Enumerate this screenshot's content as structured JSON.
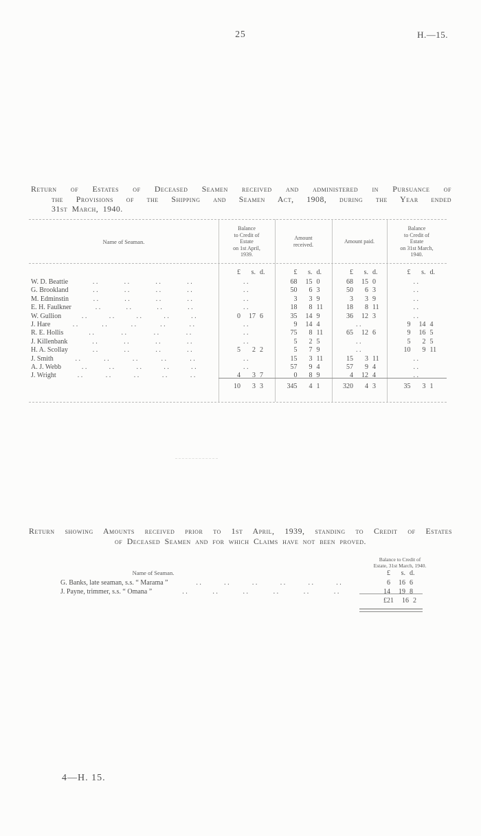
{
  "page": {
    "number": "25",
    "ref": "H.—15.",
    "footer": "4—H. 15."
  },
  "return1": {
    "heading_lines": [
      "Return of Estates of Deceased Seamen received and administered in Pursuance of",
      "the Provisions of the Shipping and Seamen Act, 1908, during the Year ended",
      "31st March, 1940."
    ],
    "table": {
      "name_header": "Name of Seaman.",
      "columns": [
        "Balance\nto Credit of\nEstate\non 1st April,\n1939.",
        "Amount\nreceived.",
        "Amount paid.",
        "Balance\nto Credit of\nEstate\non 31st March,\n1940."
      ],
      "currency": "£ s. d.",
      "rows": [
        {
          "name": "W. D. Beattie",
          "opening": "..",
          "received": "68 15 0",
          "paid": "68 15 0",
          "closing": ".."
        },
        {
          "name": "G. Brookland",
          "opening": "..",
          "received": "50 6 3",
          "paid": "50 6 3",
          "closing": ".."
        },
        {
          "name": "M. Edminstin",
          "opening": "..",
          "received": "3 3 9",
          "paid": "3 3 9",
          "closing": ".."
        },
        {
          "name": "E. H. Faulkner",
          "opening": "..",
          "received": "18 8 11",
          "paid": "18 8 11",
          "closing": ".."
        },
        {
          "name": "W. Gullion",
          "opening": "0 17 6",
          "received": "35 14 9",
          "paid": "36 12 3",
          "closing": ".."
        },
        {
          "name": "J. Hare",
          "opening": "..",
          "received": "9 14 4",
          "paid": "..",
          "closing": "9 14 4"
        },
        {
          "name": "R. E. Hollis",
          "opening": "..",
          "received": "75 8 11",
          "paid": "65 12 6",
          "closing": "9 16 5"
        },
        {
          "name": "J. Killenbank",
          "opening": "..",
          "received": "5 2 5",
          "paid": "..",
          "closing": "5 2 5"
        },
        {
          "name": "H. A. Scollay",
          "opening": "5 2 2",
          "received": "5 7 9",
          "paid": "..",
          "closing": "10 9 11"
        },
        {
          "name": "J. Smith",
          "opening": "..",
          "received": "15 3 11",
          "paid": "15 3 11",
          "closing": ".."
        },
        {
          "name": "A. J. Webb",
          "opening": "..",
          "received": "57 9 4",
          "paid": "57 9 4",
          "closing": ".."
        },
        {
          "name": "J. Wright",
          "opening": "4 3 7",
          "received": "0 8 9",
          "paid": "4 12 4",
          "closing": ".."
        }
      ],
      "totals": {
        "opening": "10 3 3",
        "received": "345 4 1",
        "paid": "320 4 3",
        "closing": "35 3 1"
      }
    }
  },
  "return2": {
    "heading_lines": [
      "Return showing Amounts received prior to 1st April, 1939, standing to Credit of Estates",
      "of Deceased Seamen and for which Claims have not been proved."
    ],
    "table": {
      "name_header": "Name of Seaman.",
      "balance_header_lines": [
        "Balance to Credit of",
        "Estate, 31st March, 1940."
      ],
      "currency": "£ s. d.",
      "rows": [
        {
          "name": "G. Banks, late seaman, s.s. “ Marama ”",
          "amount": "6 16 6"
        },
        {
          "name": "J. Payne, trimmer, s.s. “ Omana ”",
          "amount": "14 19 8"
        }
      ],
      "total": "£21 16 2"
    }
  }
}
